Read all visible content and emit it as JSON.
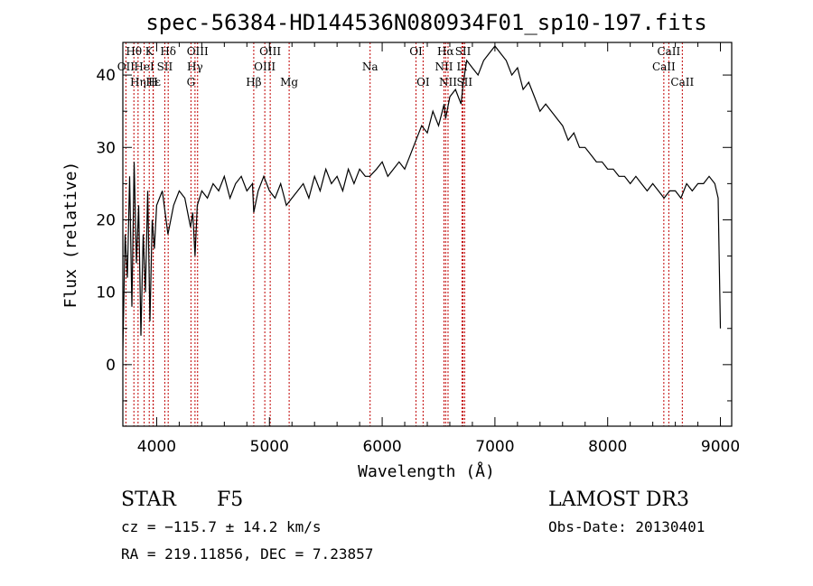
{
  "chart_data": {
    "type": "line",
    "title": "spec-56384-HD144536N080934F01_sp10-197.fits",
    "xlabel": "Wavelength (Å)",
    "ylabel": "Flux (relative)",
    "xlim": [
      3700,
      9100
    ],
    "ylim": [
      -8.5,
      44.5
    ],
    "xticks": [
      4000,
      5000,
      6000,
      7000,
      8000,
      9000
    ],
    "yticks": [
      0,
      10,
      20,
      30,
      40
    ],
    "grid": false,
    "series": [
      {
        "name": "flux",
        "x": [
          3700,
          3720,
          3740,
          3760,
          3780,
          3800,
          3820,
          3840,
          3860,
          3880,
          3900,
          3920,
          3940,
          3960,
          3980,
          4000,
          4050,
          4100,
          4150,
          4200,
          4250,
          4300,
          4320,
          4340,
          4360,
          4400,
          4450,
          4500,
          4550,
          4600,
          4650,
          4700,
          4750,
          4800,
          4850,
          4861,
          4900,
          4950,
          5000,
          5050,
          5100,
          5150,
          5200,
          5250,
          5300,
          5350,
          5400,
          5450,
          5500,
          5550,
          5600,
          5650,
          5700,
          5750,
          5800,
          5850,
          5890,
          5950,
          6000,
          6050,
          6100,
          6150,
          6200,
          6250,
          6300,
          6350,
          6400,
          6450,
          6500,
          6550,
          6563,
          6600,
          6650,
          6700,
          6720,
          6750,
          6800,
          6850,
          6900,
          6950,
          7000,
          7050,
          7100,
          7150,
          7200,
          7250,
          7300,
          7350,
          7400,
          7450,
          7500,
          7550,
          7600,
          7650,
          7700,
          7750,
          7800,
          7850,
          7900,
          7950,
          8000,
          8050,
          8100,
          8150,
          8200,
          8250,
          8300,
          8350,
          8400,
          8450,
          8500,
          8550,
          8600,
          8650,
          8700,
          8750,
          8800,
          8850,
          8900,
          8950,
          8980,
          9000
        ],
        "y": [
          2,
          18,
          12,
          26,
          8,
          28,
          14,
          22,
          4,
          18,
          10,
          24,
          6,
          20,
          16,
          22,
          24,
          18,
          22,
          24,
          23,
          19,
          21,
          15,
          22,
          24,
          23,
          25,
          24,
          26,
          23,
          25,
          26,
          24,
          25,
          21,
          24,
          26,
          24,
          23,
          25,
          22,
          23,
          24,
          25,
          23,
          26,
          24,
          27,
          25,
          26,
          24,
          27,
          25,
          27,
          26,
          26,
          27,
          28,
          26,
          27,
          28,
          27,
          29,
          31,
          33,
          32,
          35,
          33,
          36,
          34,
          37,
          38,
          36,
          39,
          42,
          41,
          40,
          42,
          43,
          44,
          43,
          42,
          40,
          41,
          38,
          39,
          37,
          35,
          36,
          35,
          34,
          33,
          31,
          32,
          30,
          30,
          29,
          28,
          28,
          27,
          27,
          26,
          26,
          25,
          26,
          25,
          24,
          25,
          24,
          23,
          24,
          24,
          23,
          25,
          24,
          25,
          25,
          26,
          25,
          23,
          5
        ]
      }
    ],
    "lines": [
      {
        "label": "Hθ",
        "wl": 3798,
        "row": 1
      },
      {
        "label": "OII",
        "wl": 3727,
        "row": 2
      },
      {
        "label": "Hη",
        "wl": 3835,
        "row": 3
      },
      {
        "label": "K",
        "wl": 3934,
        "row": 1
      },
      {
        "label": "HeI",
        "wl": 3889,
        "row": 2
      },
      {
        "label": "Hε",
        "wl": 3970,
        "row": 3
      },
      {
        "label": "H",
        "wl": 3968,
        "row": 3
      },
      {
        "label": "Hδ",
        "wl": 4102,
        "row": 1
      },
      {
        "label": "SII",
        "wl": 4072,
        "row": 2
      },
      {
        "label": "OIII",
        "wl": 4363,
        "row": 1
      },
      {
        "label": "Hγ",
        "wl": 4340,
        "row": 2
      },
      {
        "label": "G",
        "wl": 4304,
        "row": 3
      },
      {
        "label": "Hβ",
        "wl": 4861,
        "row": 3
      },
      {
        "label": "OIII",
        "wl": 5007,
        "row": 1
      },
      {
        "label": "OIII",
        "wl": 4959,
        "row": 2
      },
      {
        "label": "Mg",
        "wl": 5175,
        "row": 3
      },
      {
        "label": "Na",
        "wl": 5893,
        "row": 2
      },
      {
        "label": "OI",
        "wl": 6300,
        "row": 1
      },
      {
        "label": "OI",
        "wl": 6363,
        "row": 3
      },
      {
        "label": "Hα",
        "wl": 6563,
        "row": 1
      },
      {
        "label": "NII",
        "wl": 6548,
        "row": 2
      },
      {
        "label": "NII",
        "wl": 6584,
        "row": 3
      },
      {
        "label": "SII",
        "wl": 6717,
        "row": 1
      },
      {
        "label": "Li",
        "wl": 6708,
        "row": 2
      },
      {
        "label": "SII",
        "wl": 6731,
        "row": 3
      },
      {
        "label": "CaII",
        "wl": 8542,
        "row": 1
      },
      {
        "label": "CaII",
        "wl": 8498,
        "row": 2
      },
      {
        "label": "CaII",
        "wl": 8662,
        "row": 3
      }
    ]
  },
  "info": {
    "object_class": "STAR",
    "subclass": "F5",
    "survey": "LAMOST DR3",
    "cz": "cz = −115.7 ± 14.2 km/s",
    "obs_date": "Obs-Date: 20130401",
    "coords": "RA = 219.11856, DEC =    7.23857"
  }
}
